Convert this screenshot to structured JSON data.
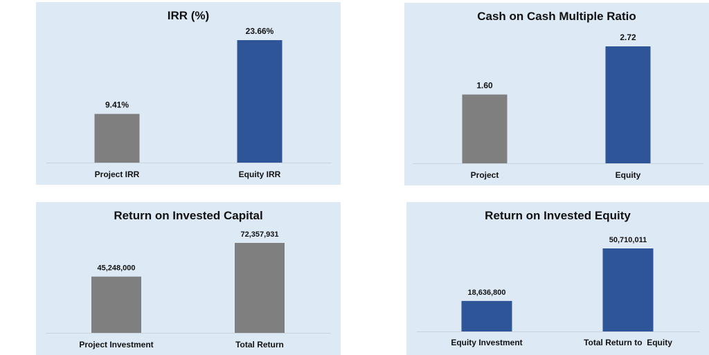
{
  "chart_data": [
    {
      "type": "bar",
      "title": "IRR (%)",
      "categories": [
        "Project IRR",
        "Equity IRR"
      ],
      "values": [
        9.41,
        23.66
      ],
      "value_labels": [
        "9.41%",
        "23.66%"
      ],
      "colors": [
        "#7f7f7f",
        "#2e5597"
      ],
      "ylim": [
        0,
        23.66
      ]
    },
    {
      "type": "bar",
      "title": "Cash on Cash Multiple Ratio",
      "categories": [
        "Project",
        "Equity"
      ],
      "values": [
        1.6,
        2.72
      ],
      "value_labels": [
        "1.60",
        "2.72"
      ],
      "colors": [
        "#7f7f7f",
        "#2e5597"
      ],
      "ylim": [
        0,
        2.72
      ]
    },
    {
      "type": "bar",
      "title": "Return on Invested Capital",
      "categories": [
        "Project Investment",
        "Total Return"
      ],
      "values": [
        45248000,
        72357931
      ],
      "value_labels": [
        "45,248,000",
        "72,357,931"
      ],
      "colors": [
        "#7f7f7f",
        "#7f7f7f"
      ],
      "ylim": [
        0,
        72357931
      ]
    },
    {
      "type": "bar",
      "title": "Return on Invested Equity",
      "categories": [
        "Equity Investment",
        "Total Return to  Equity"
      ],
      "values": [
        18636800,
        50710011
      ],
      "value_labels": [
        "18,636,800",
        "50,710,011"
      ],
      "colors": [
        "#2e5597",
        "#2e5597"
      ],
      "ylim": [
        0,
        50710011
      ]
    }
  ]
}
